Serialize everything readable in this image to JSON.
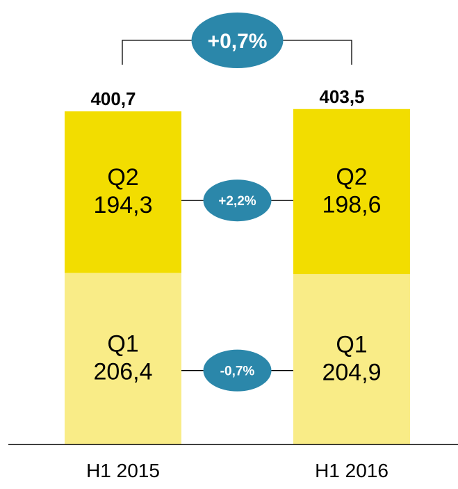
{
  "chart_data": {
    "type": "bar",
    "stacked": true,
    "categories": [
      "H1 2015",
      "H1 2016"
    ],
    "series": [
      {
        "name": "Q1",
        "values": [
          206.4,
          204.9
        ],
        "value_labels": [
          "206,4",
          "204,9"
        ],
        "color": "#f9ec87"
      },
      {
        "name": "Q2",
        "values": [
          194.3,
          198.6
        ],
        "value_labels": [
          "194,3",
          "198,6"
        ],
        "color": "#f2dd00"
      }
    ],
    "totals": [
      400.7,
      403.5
    ],
    "total_labels": [
      "400,7",
      "403,5"
    ],
    "growth": {
      "total": "+0,7%",
      "Q2": "+2,2%",
      "Q1": "-0,7%"
    },
    "badge_color": "#2b87aa",
    "ylim": [
      0,
      410
    ]
  }
}
